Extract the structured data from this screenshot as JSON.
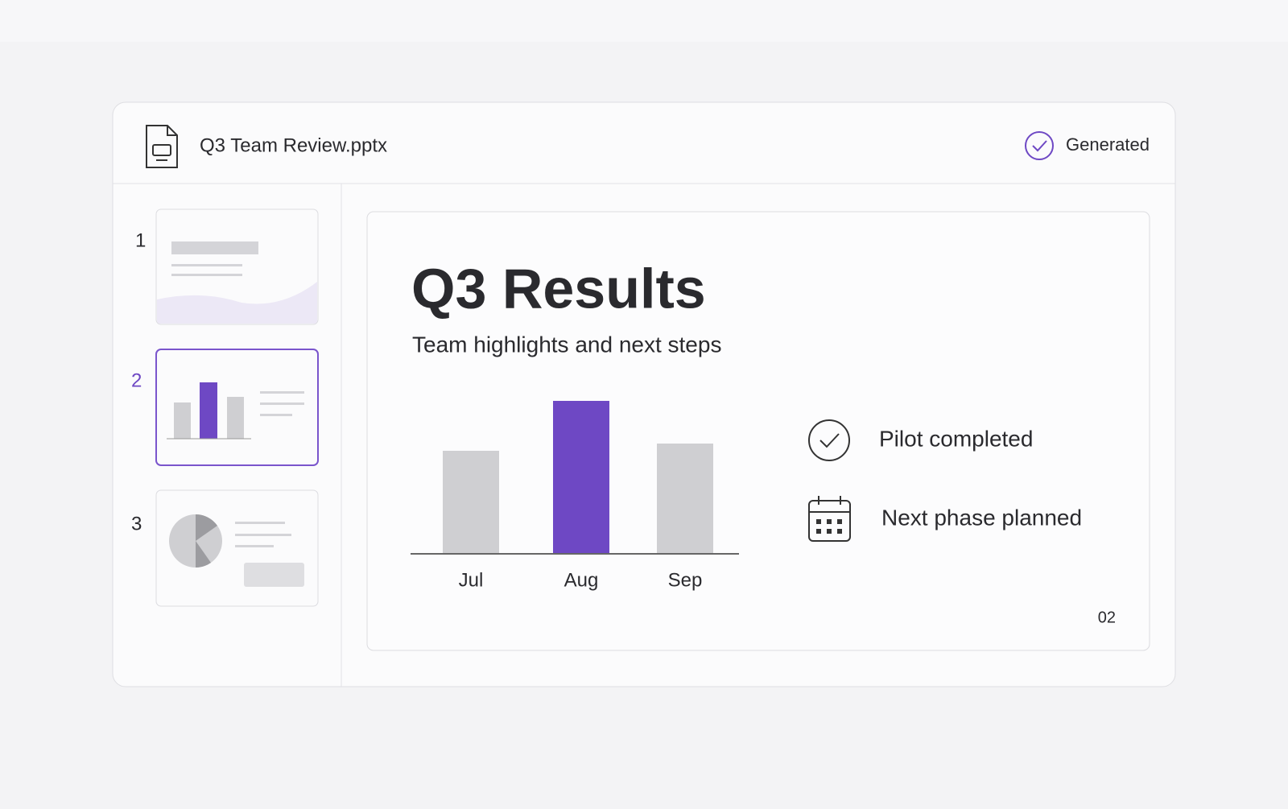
{
  "header": {
    "file_name": "Q3 Team Review.pptx",
    "status": "Generated"
  },
  "slides": [
    {
      "number": "1"
    },
    {
      "number": "2"
    },
    {
      "number": "3"
    }
  ],
  "slide": {
    "title": "Q3 Results",
    "subtitle": "Team highlights and next steps",
    "items": [
      "Pilot completed",
      "Next phase planned"
    ],
    "page_number": "02"
  },
  "chart_data": {
    "type": "bar",
    "categories": [
      "Jul",
      "Aug",
      "Sep"
    ],
    "values": [
      127,
      189,
      136
    ],
    "colors": [
      "#cfcfd2",
      "#6e48c4",
      "#cfcfd2"
    ]
  }
}
